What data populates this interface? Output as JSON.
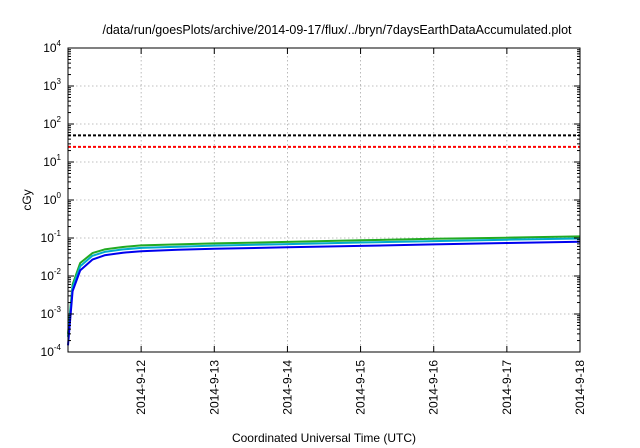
{
  "chart_data": {
    "type": "line",
    "title": "/data/run/goesPlots/archive/2014-09-17/flux/../bryn/7daysEarthDataAccumulated.plot",
    "xlabel": "Coordinated Universal Time (UTC)",
    "ylabel": "cGy",
    "x_ticks": [
      "2014-9-12",
      "2014-9-13",
      "2014-9-14",
      "2014-9-15",
      "2014-9-16",
      "2014-9-17",
      "2014-9-18"
    ],
    "xlim": [
      "2014-09-11",
      "2014-09-18"
    ],
    "y_scale": "log",
    "ylim": [
      0.0001,
      10000
    ],
    "y_ticks": [
      {
        "base": "10",
        "exp": "-4"
      },
      {
        "base": "10",
        "exp": "-3"
      },
      {
        "base": "10",
        "exp": "-2"
      },
      {
        "base": "10",
        "exp": "-1"
      },
      {
        "base": "10",
        "exp": "0"
      },
      {
        "base": "10",
        "exp": "1"
      },
      {
        "base": "10",
        "exp": "2"
      },
      {
        "base": "10",
        "exp": "3"
      },
      {
        "base": "10",
        "exp": "4"
      }
    ],
    "grid": true,
    "series": [
      {
        "color": "#000000",
        "style": "dashed",
        "x": [
          "2014-09-11",
          "2014-09-18"
        ],
        "y": [
          50,
          50
        ]
      },
      {
        "color": "#ff0000",
        "style": "dashed",
        "x": [
          "2014-09-11",
          "2014-09-18"
        ],
        "y": [
          25,
          25
        ]
      },
      {
        "color": "#22aa22",
        "style": "solid",
        "x": [
          "2014-09-11T00:00",
          "2014-09-11T01:30",
          "2014-09-11T04:00",
          "2014-09-11T08:00",
          "2014-09-11T12:00",
          "2014-09-11T18:00",
          "2014-09-12T00:00",
          "2014-09-12T12:00",
          "2014-09-13T00:00",
          "2014-09-14T00:00",
          "2014-09-15T00:00",
          "2014-09-16T00:00",
          "2014-09-17T00:00",
          "2014-09-18T00:00"
        ],
        "y": [
          0.0003,
          0.006,
          0.022,
          0.04,
          0.05,
          0.058,
          0.064,
          0.068,
          0.072,
          0.079,
          0.087,
          0.095,
          0.102,
          0.11
        ]
      },
      {
        "color": "#00aacc",
        "style": "solid",
        "x": [
          "2014-09-11T00:00",
          "2014-09-11T01:30",
          "2014-09-11T04:00",
          "2014-09-11T08:00",
          "2014-09-11T12:00",
          "2014-09-11T18:00",
          "2014-09-12T00:00",
          "2014-09-12T12:00",
          "2014-09-13T00:00",
          "2014-09-14T00:00",
          "2014-09-15T00:00",
          "2014-09-16T00:00",
          "2014-09-17T00:00",
          "2014-09-18T00:00"
        ],
        "y": [
          0.00025,
          0.005,
          0.018,
          0.034,
          0.043,
          0.05,
          0.055,
          0.059,
          0.063,
          0.069,
          0.076,
          0.083,
          0.09,
          0.097
        ]
      },
      {
        "color": "#0000ee",
        "style": "solid",
        "x": [
          "2014-09-11T00:00",
          "2014-09-11T01:30",
          "2014-09-11T04:00",
          "2014-09-11T08:00",
          "2014-09-11T12:00",
          "2014-09-11T18:00",
          "2014-09-12T00:00",
          "2014-09-12T12:00",
          "2014-09-13T00:00",
          "2014-09-14T00:00",
          "2014-09-15T00:00",
          "2014-09-16T00:00",
          "2014-09-17T00:00",
          "2014-09-18T00:00"
        ],
        "y": [
          0.00015,
          0.004,
          0.014,
          0.027,
          0.035,
          0.041,
          0.045,
          0.049,
          0.052,
          0.057,
          0.062,
          0.068,
          0.074,
          0.08
        ]
      }
    ]
  }
}
